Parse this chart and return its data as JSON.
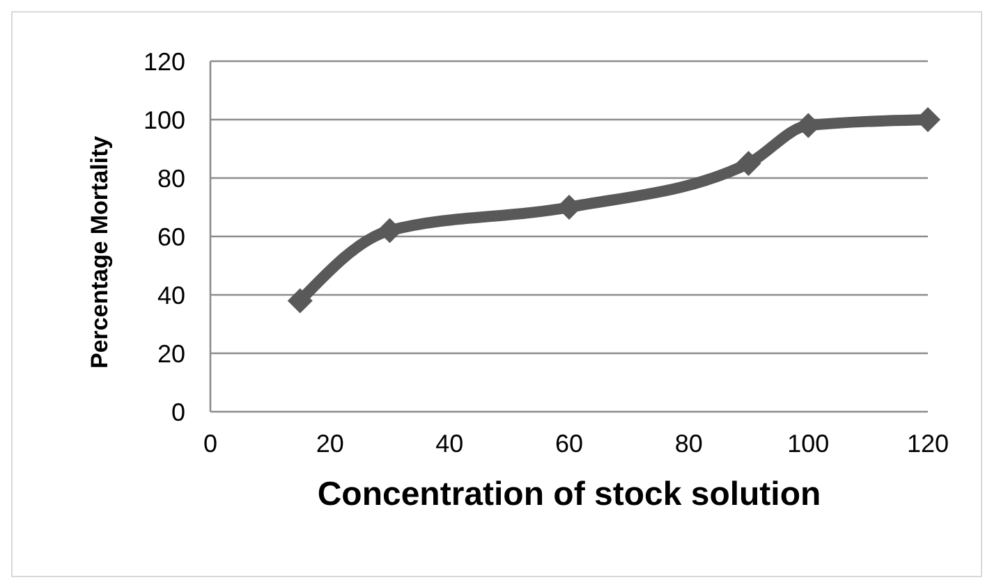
{
  "chart_data": {
    "type": "line",
    "xlabel": "Concentration of stock solution",
    "ylabel": "Percentage Mortality",
    "x": [
      15,
      30,
      60,
      90,
      100,
      120
    ],
    "series": [
      {
        "color": "#595959",
        "values": [
          38,
          62,
          70,
          85,
          98,
          100
        ]
      }
    ],
    "xlim": [
      0,
      120
    ],
    "xticks": [
      0,
      20,
      40,
      60,
      80,
      100,
      120
    ],
    "ylim": [
      0,
      120
    ],
    "yticks": [
      0,
      20,
      40,
      60,
      80,
      100,
      120
    ],
    "grid": "y",
    "legend": false,
    "marker": "diamond",
    "line_style": "solid"
  }
}
